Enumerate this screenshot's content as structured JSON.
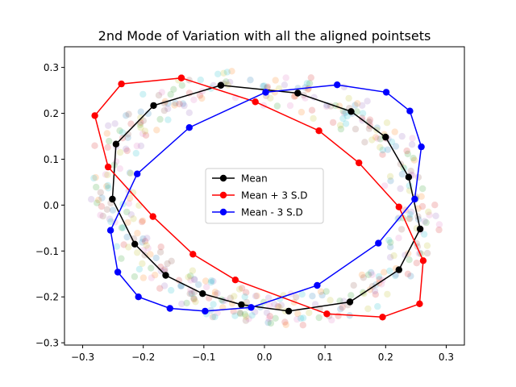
{
  "chart_data": {
    "type": "line",
    "title": "2nd Mode of Variation with all the aligned pointsets",
    "xlabel": "",
    "ylabel": "",
    "xlim": [
      -0.33,
      0.33
    ],
    "ylim": [
      -0.305,
      0.345
    ],
    "xticks": [
      -0.3,
      -0.2,
      -0.1,
      0.0,
      0.1,
      0.2,
      0.3
    ],
    "xtick_labels": [
      "−0.3",
      "−0.2",
      "−0.1",
      "0.0",
      "0.1",
      "0.2",
      "0.3"
    ],
    "yticks": [
      -0.3,
      -0.2,
      -0.1,
      0.0,
      0.1,
      0.2,
      0.3
    ],
    "ytick_labels": [
      "−0.3",
      "−0.2",
      "−0.1",
      "0.0",
      "0.1",
      "0.2",
      "0.3"
    ],
    "grid": false,
    "legend_position": "center",
    "series": [
      {
        "name": "Mean",
        "color": "#000000",
        "x": [
          -0.072,
          0.055,
          0.143,
          0.2,
          0.238,
          0.257,
          0.222,
          0.141,
          0.04,
          -0.038,
          -0.102,
          -0.163,
          -0.214,
          -0.251,
          -0.245,
          -0.183,
          -0.072
        ],
        "y": [
          0.261,
          0.244,
          0.204,
          0.148,
          0.061,
          -0.052,
          -0.141,
          -0.211,
          -0.231,
          -0.217,
          -0.193,
          -0.153,
          -0.085,
          0.013,
          0.133,
          0.217,
          0.261
        ]
      },
      {
        "name": "Mean + 3 S.D",
        "color": "#ff0000",
        "x": [
          -0.137,
          -0.015,
          0.09,
          0.156,
          0.222,
          0.262,
          0.256,
          0.195,
          0.103,
          -0.048,
          -0.118,
          -0.184,
          -0.258,
          -0.28,
          -0.236,
          -0.137
        ],
        "y": [
          0.277,
          0.225,
          0.162,
          0.092,
          -0.004,
          -0.121,
          -0.215,
          -0.244,
          -0.237,
          -0.163,
          -0.107,
          -0.025,
          0.083,
          0.195,
          0.264,
          0.277
        ]
      },
      {
        "name": "Mean - 3 S.D",
        "color": "#0000ff",
        "x": [
          0.002,
          0.12,
          0.201,
          0.24,
          0.259,
          0.248,
          0.188,
          0.087,
          -0.022,
          -0.098,
          -0.156,
          -0.208,
          -0.242,
          -0.254,
          -0.21,
          -0.124,
          0.002
        ],
        "y": [
          0.246,
          0.262,
          0.246,
          0.205,
          0.127,
          0.013,
          -0.083,
          -0.175,
          -0.223,
          -0.231,
          -0.225,
          -0.2,
          -0.146,
          -0.055,
          0.068,
          0.169,
          0.246
        ]
      }
    ],
    "background_points": {
      "description_colors": [
        "#1f77b4",
        "#ff7f0e",
        "#2ca02c",
        "#d62728",
        "#9467bd",
        "#8c564b",
        "#e377c2",
        "#bcbd22",
        "#17becf"
      ],
      "opacity": 0.2
    }
  }
}
